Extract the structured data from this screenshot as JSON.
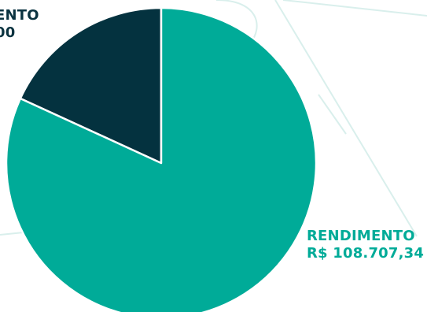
{
  "colors": {
    "background": "#ffffff",
    "rendimento": "#00ab98",
    "aporte": "#04323f",
    "aporte_label": "#0b3340",
    "slice_border": "#ffffff",
    "decor_lines": "#d9efec"
  },
  "chart_data": {
    "type": "pie",
    "title": "",
    "slices": [
      {
        "key": "aporte",
        "label_line1": "ENTO",
        "label_line2": "00",
        "fraction": 0.1817
      },
      {
        "key": "rendimento",
        "label_line1": "RENDIMENTO",
        "label_line2": "R$ 108.707,34",
        "fraction": 0.8183
      }
    ]
  }
}
